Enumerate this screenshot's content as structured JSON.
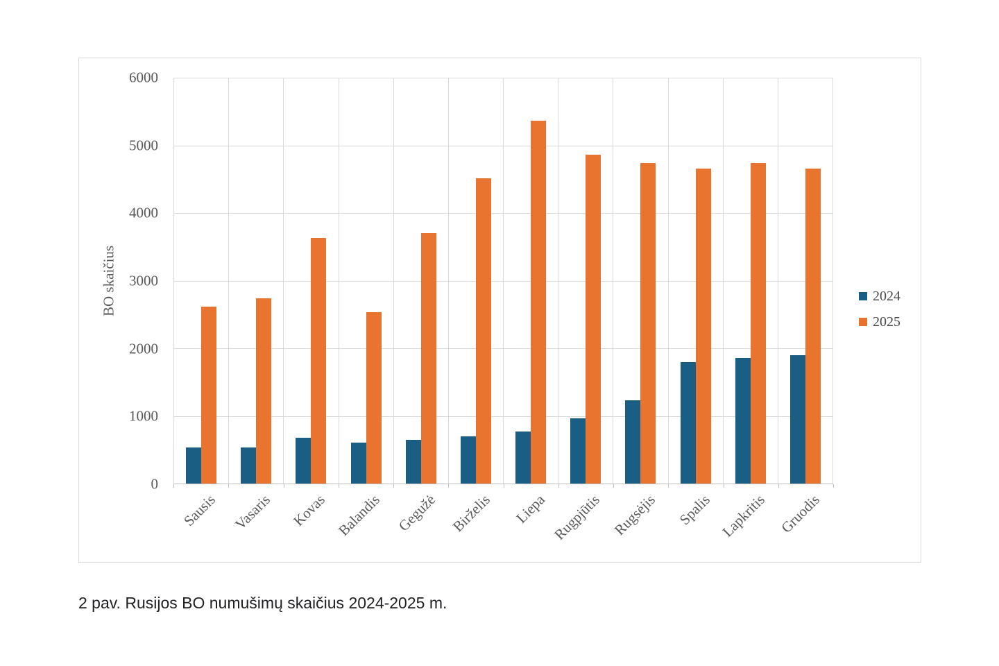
{
  "caption": "2 pav. Rusijos BO numušimų skaičius 2024-2025 m.",
  "colors": {
    "series_2024": "#1b5e83",
    "series_2025": "#e8742f",
    "gridline": "#d9d9d9",
    "axis_line": "#bfbfbf",
    "axis_text": "#595959",
    "legend_text": "#4a4a4a",
    "chart_border": "#d9d9d9",
    "caption_text": "#1f2023"
  },
  "chart_data": {
    "type": "bar",
    "title": "",
    "xlabel": "",
    "ylabel": "BO skaičius",
    "ylim": [
      0,
      6000
    ],
    "ytick_step": 1000,
    "grid": true,
    "legend_position": "right",
    "categories": [
      "Sausis",
      "Vasaris",
      "Kovas",
      "Balandis",
      "Gegužė",
      "Birželis",
      "Liepa",
      "Rugpjūtis",
      "Rugsėjis",
      "Spalis",
      "Lapkritis",
      "Gruodis"
    ],
    "series": [
      {
        "name": "2024",
        "color": "#1b5e83",
        "values": [
          530,
          530,
          680,
          610,
          650,
          700,
          770,
          960,
          1230,
          1790,
          1860,
          1900
        ]
      },
      {
        "name": "2025",
        "color": "#e8742f",
        "values": [
          2620,
          2740,
          3630,
          2530,
          3700,
          4510,
          5360,
          4860,
          4740,
          4660,
          4740,
          4660
        ]
      }
    ]
  }
}
